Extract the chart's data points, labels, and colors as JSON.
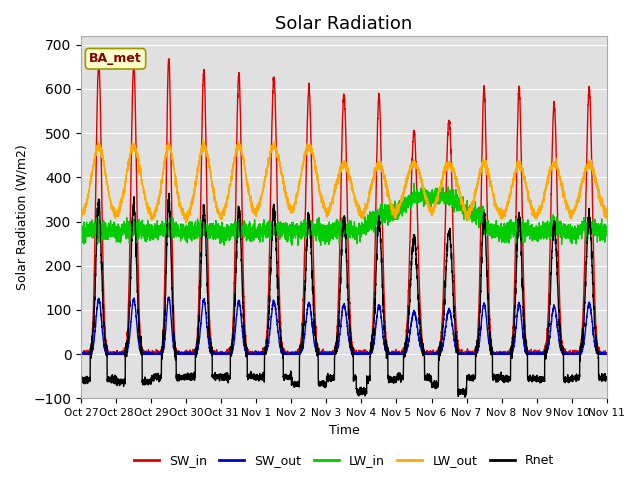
{
  "title": "Solar Radiation",
  "ylabel": "Solar Radiation (W/m2)",
  "xlabel": "Time",
  "ylim": [
    -100,
    720
  ],
  "yticks": [
    -100,
    0,
    100,
    200,
    300,
    400,
    500,
    600,
    700
  ],
  "x_tick_labels": [
    "Oct 27",
    "Oct 28",
    "Oct 29",
    "Oct 30",
    "Oct 31",
    "Nov 1",
    "Nov 2",
    "Nov 3",
    "Nov 4",
    "Nov 5",
    "Nov 6",
    "Nov 7",
    "Nov 8",
    "Nov 9",
    "Nov 10",
    "Nov 11"
  ],
  "annotation": "BA_met",
  "colors": {
    "SW_in": "#dd0000",
    "SW_out": "#0000cc",
    "LW_in": "#00cc00",
    "LW_out": "#ffaa00",
    "Rnet": "#000000"
  },
  "bg_color": "#e0e0e0",
  "line_width": 1.0,
  "n_days": 15,
  "pts_per_day": 288,
  "sw_peaks": [
    660,
    655,
    670,
    640,
    635,
    625,
    600,
    585,
    585,
    505,
    530,
    600,
    600,
    565,
    600
  ],
  "sw_widths": [
    0.08,
    0.08,
    0.07,
    0.08,
    0.08,
    0.09,
    0.09,
    0.09,
    0.085,
    0.1,
    0.1,
    0.08,
    0.08,
    0.09,
    0.09
  ]
}
